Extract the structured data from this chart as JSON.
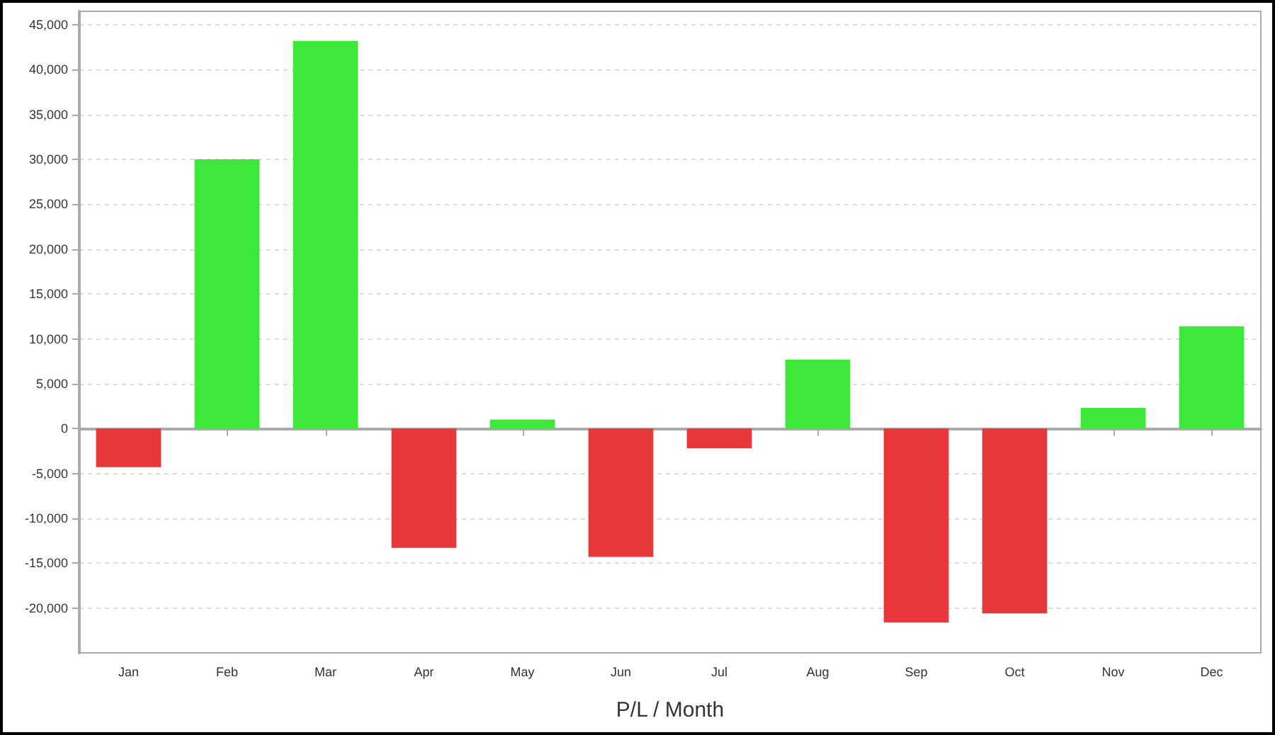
{
  "chart_data": {
    "type": "bar",
    "xlabel": "P/L / Month",
    "categories": [
      "Jan",
      "Feb",
      "Mar",
      "Apr",
      "May",
      "Jun",
      "Jul",
      "Aug",
      "Sep",
      "Oct",
      "Nov",
      "Dec"
    ],
    "values": [
      -4300,
      30000,
      43200,
      -13300,
      1000,
      -14300,
      -2200,
      7700,
      -21600,
      -20600,
      2300,
      11400
    ],
    "colors": [
      "#e8383b",
      "#3de83a",
      "#3de83a",
      "#e8383b",
      "#3de83a",
      "#e8383b",
      "#e8383b",
      "#3de83a",
      "#e8383b",
      "#e8383b",
      "#3de83a",
      "#3de83a"
    ],
    "ylim": [
      -25000,
      46500
    ],
    "yticks": [
      {
        "value": -20000,
        "label": "-20,000"
      },
      {
        "value": -15000,
        "label": "-15,000"
      },
      {
        "value": -10000,
        "label": "-10,000"
      },
      {
        "value": -5000,
        "label": "-5,000"
      },
      0,
      {
        "value": 5000,
        "label": "5,000"
      },
      {
        "value": 10000,
        "label": "10,000"
      },
      {
        "value": 15000,
        "label": "15,000"
      },
      {
        "value": 20000,
        "label": "20,000"
      },
      {
        "value": 25000,
        "label": "25,000"
      },
      {
        "value": 30000,
        "label": "30,000"
      },
      {
        "value": 35000,
        "label": "35,000"
      },
      {
        "value": 40000,
        "label": "40,000"
      },
      {
        "value": 45000,
        "label": "45,000"
      }
    ],
    "grid": "y"
  }
}
